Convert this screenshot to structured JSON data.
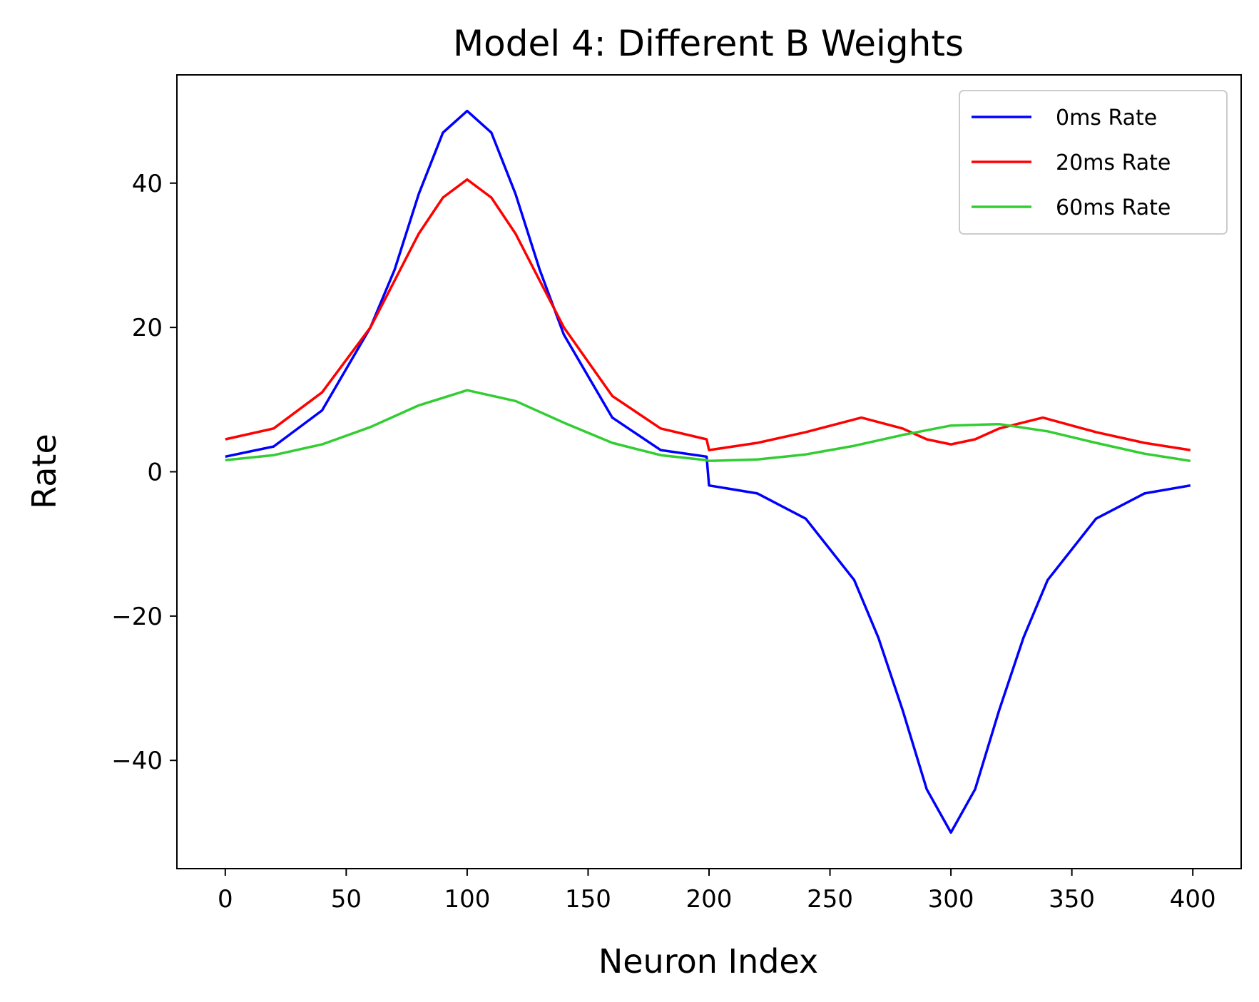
{
  "chart_data": {
    "type": "line",
    "title": "Model 4: Different B Weights",
    "xlabel": "Neuron Index",
    "ylabel": "Rate",
    "xlim": [
      -20,
      420
    ],
    "ylim": [
      -55,
      55
    ],
    "xticks": [
      0,
      50,
      100,
      150,
      200,
      250,
      300,
      350,
      400
    ],
    "yticks": [
      -40,
      -20,
      0,
      20,
      40
    ],
    "xtick_labels": [
      "0",
      "50",
      "100",
      "150",
      "200",
      "250",
      "300",
      "350",
      "400"
    ],
    "ytick_labels": [
      "−40",
      "−20",
      "0",
      "20",
      "40"
    ],
    "grid": false,
    "legend_position": "top-right",
    "series": [
      {
        "name": "0ms Rate",
        "color": "#0000ff",
        "x": [
          0,
          20,
          40,
          60,
          70,
          80,
          90,
          100,
          110,
          120,
          130,
          140,
          160,
          180,
          199,
          200,
          220,
          240,
          260,
          270,
          280,
          290,
          300,
          310,
          320,
          330,
          340,
          360,
          380,
          399
        ],
        "y": [
          2.1,
          3.5,
          8.5,
          20.0,
          28.0,
          38.5,
          47.0,
          50.0,
          47.0,
          38.5,
          28.0,
          19.0,
          7.5,
          3.0,
          2.1,
          -1.9,
          -3.0,
          -6.5,
          -15.0,
          -23.0,
          -33.0,
          -44.0,
          -50.0,
          -44.0,
          -33.0,
          -23.0,
          -15.0,
          -6.5,
          -3.0,
          -1.9
        ]
      },
      {
        "name": "20ms Rate",
        "color": "#ff0000",
        "x": [
          0,
          20,
          40,
          60,
          70,
          80,
          90,
          100,
          110,
          120,
          130,
          140,
          160,
          180,
          199,
          200,
          220,
          240,
          263,
          280,
          290,
          300,
          310,
          320,
          338,
          360,
          380,
          399
        ],
        "y": [
          4.5,
          6.0,
          11.0,
          20.0,
          26.5,
          33.0,
          38.0,
          40.5,
          38.0,
          33.0,
          26.5,
          20.0,
          10.5,
          6.0,
          4.5,
          3.0,
          4.0,
          5.5,
          7.5,
          6.0,
          4.5,
          3.8,
          4.5,
          6.0,
          7.5,
          5.5,
          4.0,
          3.0
        ]
      },
      {
        "name": "60ms Rate",
        "color": "#32cd32",
        "x": [
          0,
          20,
          40,
          60,
          80,
          100,
          120,
          140,
          160,
          180,
          199,
          200,
          220,
          240,
          260,
          280,
          300,
          320,
          340,
          360,
          380,
          399
        ],
        "y": [
          1.6,
          2.3,
          3.8,
          6.2,
          9.2,
          11.3,
          9.8,
          6.8,
          4.0,
          2.3,
          1.6,
          1.5,
          1.7,
          2.4,
          3.6,
          5.1,
          6.4,
          6.6,
          5.6,
          4.0,
          2.5,
          1.5
        ]
      }
    ]
  }
}
